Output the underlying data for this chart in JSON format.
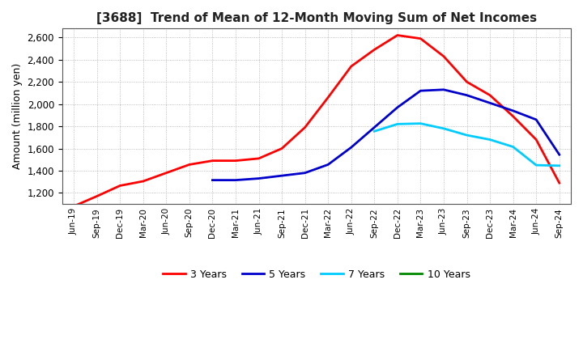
{
  "title": "[3688]  Trend of Mean of 12-Month Moving Sum of Net Incomes",
  "ylabel": "Amount (million yen)",
  "fig_bg": "#ffffff",
  "plot_bg": "#ffffff",
  "ylim": [
    1100,
    2680
  ],
  "yticks": [
    1200,
    1400,
    1600,
    1800,
    2000,
    2200,
    2400,
    2600
  ],
  "x_labels": [
    "Jun-19",
    "Sep-19",
    "Dec-19",
    "Mar-20",
    "Jun-20",
    "Sep-20",
    "Dec-20",
    "Mar-21",
    "Jun-21",
    "Sep-21",
    "Dec-21",
    "Mar-22",
    "Jun-22",
    "Sep-22",
    "Dec-22",
    "Mar-23",
    "Jun-23",
    "Sep-23",
    "Dec-23",
    "Mar-24",
    "Jun-24",
    "Sep-24"
  ],
  "series": {
    "3 Years": {
      "color": "#ff0000",
      "data_x": [
        0,
        1,
        2,
        3,
        4,
        5,
        6,
        7,
        8,
        9,
        10,
        11,
        12,
        13,
        14,
        15,
        16,
        17,
        18,
        19,
        20,
        21
      ],
      "data_y": [
        1080,
        1170,
        1265,
        1305,
        1380,
        1455,
        1490,
        1490,
        1510,
        1600,
        1790,
        2060,
        2340,
        2490,
        2620,
        2590,
        2430,
        2200,
        2080,
        1890,
        1680,
        1290
      ]
    },
    "5 Years": {
      "color": "#0000cc",
      "data_x": [
        6,
        7,
        8,
        9,
        10,
        11,
        12,
        13,
        14,
        15,
        16,
        17,
        18,
        19,
        20,
        21
      ],
      "data_y": [
        1315,
        1315,
        1330,
        1355,
        1380,
        1455,
        1610,
        1790,
        1970,
        2120,
        2130,
        2080,
        2010,
        1940,
        1860,
        1545
      ]
    },
    "7 Years": {
      "color": "#00ccff",
      "data_x": [
        13,
        14,
        15,
        16,
        17,
        18,
        19,
        20,
        21
      ],
      "data_y": [
        1755,
        1820,
        1825,
        1780,
        1720,
        1680,
        1615,
        1450,
        1445
      ]
    },
    "10 Years": {
      "color": "#008800",
      "data_x": [],
      "data_y": []
    }
  },
  "legend_order": [
    "3 Years",
    "5 Years",
    "7 Years",
    "10 Years"
  ],
  "legend_colors": {
    "3 Years": "#ff0000",
    "5 Years": "#0000cc",
    "7 Years": "#00ccff",
    "10 Years": "#008800"
  }
}
